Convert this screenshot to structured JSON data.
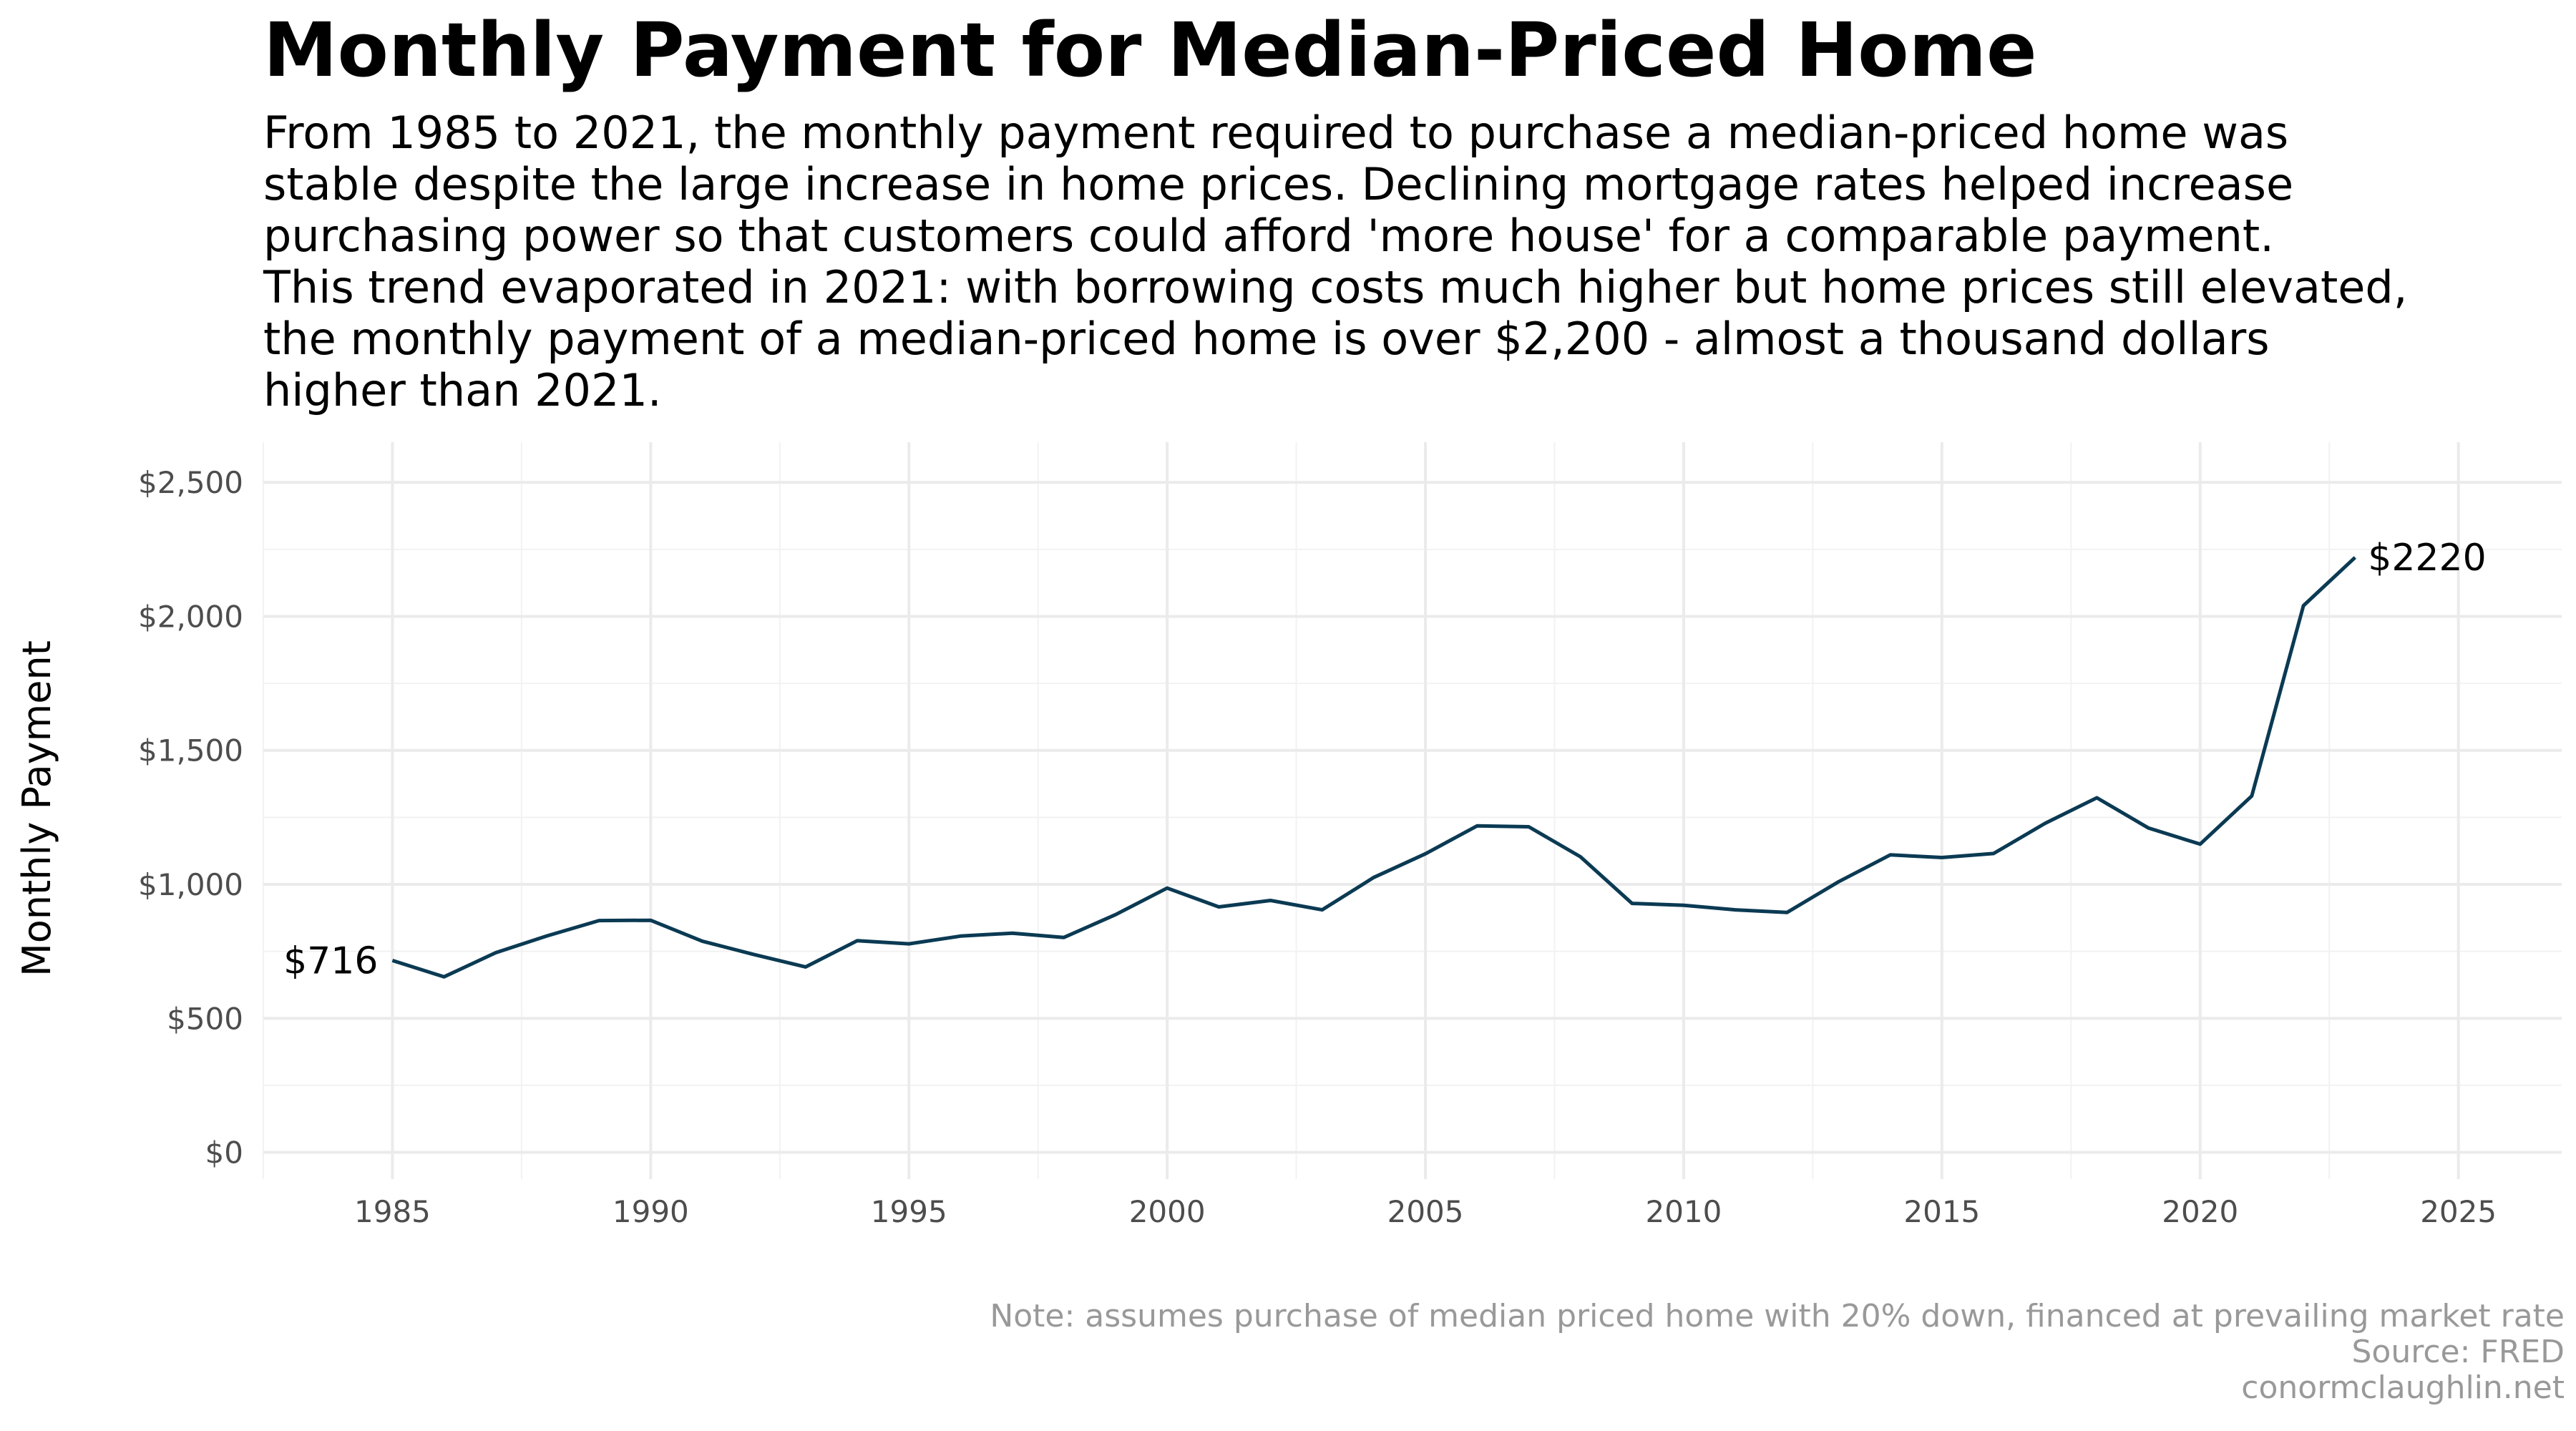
{
  "chart_data": {
    "type": "line",
    "title": "Monthly Payment for Median-Priced Home",
    "subtitle": "From 1985 to 2021, the monthly payment required to purchase a median-priced home was\nstable despite the large increase in home prices. Declining mortgage rates helped increase\npurchasing power so that customers could afford 'more house' for a comparable payment.\nThis trend evaporated in 2021: with borrowing costs much higher but home prices still elevated,\nthe monthly payment of a median-priced home is over $2,200 - almost a thousand dollars\nhigher than 2021.",
    "ylabel": "Monthly Payment",
    "xlabel": "",
    "xlim": [
      1982.5,
      2027
    ],
    "ylim": [
      -100,
      2650
    ],
    "x_ticks": [
      1985,
      1990,
      1995,
      2000,
      2005,
      2010,
      2015,
      2020,
      2025
    ],
    "x_tick_labels": [
      "1985",
      "1990",
      "1995",
      "2000",
      "2005",
      "2010",
      "2015",
      "2020",
      "2025"
    ],
    "y_ticks": [
      0,
      500,
      1000,
      1500,
      2000,
      2500
    ],
    "y_tick_labels": [
      "$0",
      "$500",
      "$1,000",
      "$1,500",
      "$2,000",
      "$2,500"
    ],
    "grid": true,
    "line_color": "#0b3a53",
    "series": [
      {
        "x": [
          1985,
          1986,
          1987,
          1988,
          1989,
          1990,
          1991,
          1992,
          1993,
          1994,
          1995,
          1996,
          1997,
          1998,
          1999,
          2000,
          2001,
          2002,
          2003,
          2004,
          2005,
          2006,
          2007,
          2008,
          2009,
          2010,
          2011,
          2012,
          2013,
          2014,
          2015,
          2016,
          2017,
          2018,
          2019,
          2020,
          2021,
          2022,
          2023
        ],
        "values": [
          716,
          655,
          745,
          808,
          865,
          866,
          788,
          738,
          692,
          790,
          778,
          807,
          818,
          802,
          887,
          986,
          916,
          940,
          905,
          1026,
          1114,
          1218,
          1215,
          1103,
          929,
          922,
          905,
          895,
          1010,
          1110,
          1100,
          1115,
          1228,
          1323,
          1210,
          1150,
          1330,
          2040,
          2220
        ]
      }
    ],
    "annotations": [
      {
        "x": 1985,
        "y": 716,
        "text": "$716",
        "anchor": "end"
      },
      {
        "x": 2023,
        "y": 2220,
        "text": "$2220",
        "anchor": "start"
      }
    ],
    "caption": [
      "Note: assumes purchase of median priced home with 20% down, financed at prevailing market rate",
      "Source: FRED",
      "conormclaughlin.net"
    ]
  }
}
